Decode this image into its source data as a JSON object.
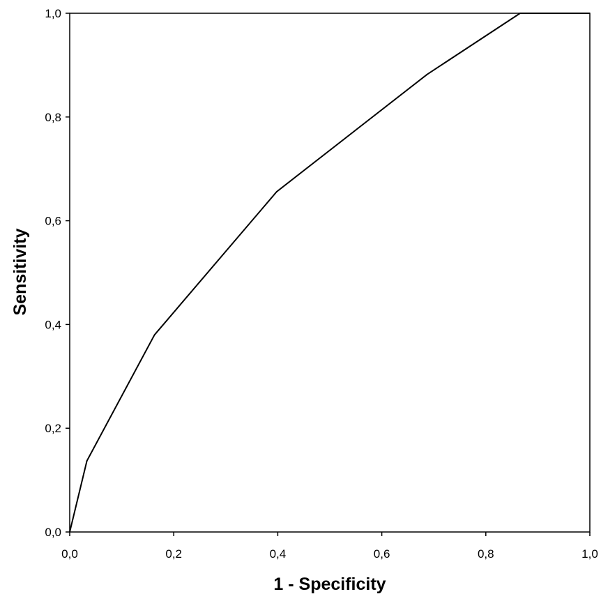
{
  "chart_data": {
    "type": "line",
    "title": "",
    "xlabel": "1 - Specificity",
    "ylabel": "Sensitivity",
    "xlim": [
      0,
      1
    ],
    "ylim": [
      0,
      1
    ],
    "x_ticks": [
      "0,0",
      "0,2",
      "0,4",
      "0,6",
      "0,8",
      "1,0"
    ],
    "y_ticks": [
      "0,0",
      "0,2",
      "0,4",
      "0,6",
      "0,8",
      "1,0"
    ],
    "grid": false,
    "series": [
      {
        "color": "#000000",
        "x": [
          0.0,
          0.033,
          0.163,
          0.398,
          0.687,
          0.866,
          1.0
        ],
        "y": [
          0.0,
          0.137,
          0.38,
          0.656,
          0.882,
          1.0,
          1.0
        ]
      }
    ]
  }
}
